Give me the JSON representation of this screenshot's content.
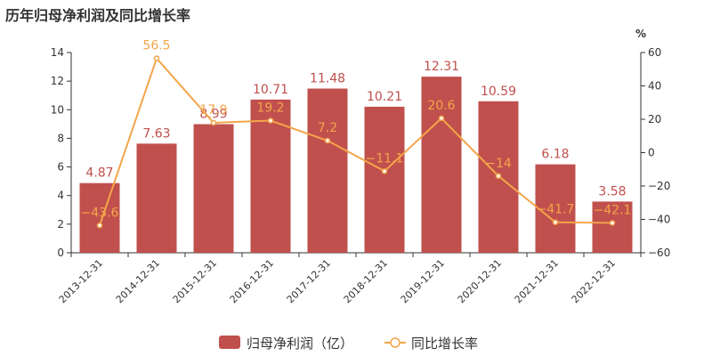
{
  "chart_data": {
    "type": "bar",
    "title": "历年归母净利润及同比增长率",
    "categories": [
      "2013-12-31",
      "2014-12-31",
      "2015-12-31",
      "2016-12-31",
      "2017-12-31",
      "2018-12-31",
      "2019-12-31",
      "2020-12-31",
      "2021-12-31",
      "2022-12-31"
    ],
    "series": [
      {
        "name": "归母净利润（亿）",
        "type": "bar",
        "axis": "left",
        "values": [
          4.87,
          7.63,
          8.99,
          10.71,
          11.48,
          10.21,
          12.31,
          10.59,
          6.18,
          3.58
        ],
        "labels": [
          "4.87",
          "7.63",
          "8.99",
          "10.71",
          "11.48",
          "10.21",
          "12.31",
          "10.59",
          "6.18",
          "3.58"
        ]
      },
      {
        "name": "同比增长率",
        "type": "line",
        "axis": "right",
        "values": [
          -43.6,
          56.5,
          17.9,
          19.2,
          7.2,
          -11.1,
          20.6,
          -14,
          -41.7,
          -42.1
        ],
        "labels": [
          "−43.6",
          "56.5",
          "17.9",
          "19.2",
          "7.2",
          "−11.1",
          "20.6",
          "−14",
          "−41.7",
          "−42.1"
        ]
      }
    ],
    "y_left": {
      "min": 0,
      "max": 14,
      "ticks": [
        0,
        2,
        4,
        6,
        8,
        10,
        12,
        14
      ]
    },
    "y_right": {
      "min": -60,
      "max": 60,
      "ticks": [
        -60,
        -40,
        -20,
        0,
        20,
        40,
        60
      ],
      "tick_labels": [
        "−60",
        "−40",
        "−20",
        "0",
        "20",
        "40",
        "60"
      ],
      "unit": "%"
    },
    "colors": {
      "bar": "#c0504d",
      "line": "#f4a54a",
      "axis": "#333333",
      "bar_label": "#c0504d",
      "line_label": "#f4a54a"
    },
    "grid": false,
    "legend_position": "bottom-center"
  }
}
